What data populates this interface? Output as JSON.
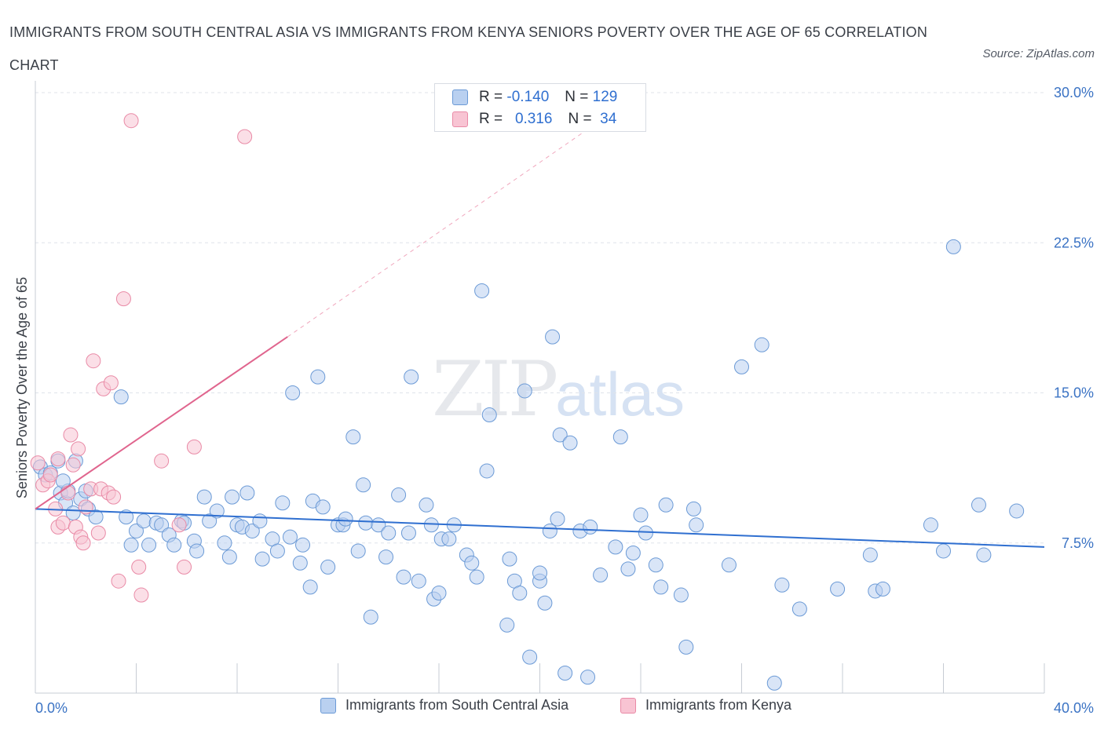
{
  "header": {
    "title": "IMMIGRANTS FROM SOUTH CENTRAL ASIA VS IMMIGRANTS FROM KENYA SENIORS POVERTY OVER THE AGE OF 65 CORRELATION CHART",
    "source": "Source: ZipAtlas.com"
  },
  "watermark": {
    "zip": "ZIP",
    "atlas": "atlas"
  },
  "stats": {
    "r_label": "R =",
    "n_label": "N =",
    "rows": [
      {
        "r": "-0.140",
        "n": "129"
      },
      {
        "r": "0.316",
        "n": "34"
      }
    ]
  },
  "colors": {
    "blue_fill": "#b9d0f0",
    "blue_stroke": "#6b9ad6",
    "blue_line": "#2f6fd0",
    "pink_fill": "#f8c4d3",
    "pink_stroke": "#e98aa6",
    "pink_line": "#e0658e",
    "grid": "#dfe3ea",
    "axis_label": "#3b73c4"
  },
  "chart_data": {
    "type": "scatter",
    "xlabel": "",
    "ylabel": "Seniors Poverty Over the Age of 65",
    "xlim": [
      0,
      40
    ],
    "ylim": [
      0,
      30
    ],
    "x_tick_labels": [
      "0.0%",
      "40.0%"
    ],
    "y_ticks": [
      7.5,
      15.0,
      22.5,
      30.0
    ],
    "y_tick_labels": [
      "7.5%",
      "15.0%",
      "22.5%",
      "30.0%"
    ],
    "grid": "horizontal-dashed",
    "legend_position": "bottom",
    "series": [
      {
        "name": "Immigrants from South Central Asia",
        "color": "blue",
        "trend": {
          "x": [
            0,
            40
          ],
          "y": [
            9.2,
            7.3
          ]
        },
        "points": [
          [
            0.2,
            11.3
          ],
          [
            0.4,
            10.9
          ],
          [
            0.6,
            11.0
          ],
          [
            0.9,
            11.6
          ],
          [
            1.0,
            10.0
          ],
          [
            1.2,
            9.5
          ],
          [
            1.3,
            10.1
          ],
          [
            1.5,
            9.0
          ],
          [
            1.6,
            11.6
          ],
          [
            1.8,
            9.7
          ],
          [
            2.0,
            10.1
          ],
          [
            2.1,
            9.2
          ],
          [
            2.4,
            8.8
          ],
          [
            3.4,
            14.8
          ],
          [
            3.6,
            8.8
          ],
          [
            3.8,
            7.4
          ],
          [
            4.0,
            8.1
          ],
          [
            4.3,
            8.6
          ],
          [
            4.5,
            7.4
          ],
          [
            4.8,
            8.5
          ],
          [
            5.0,
            8.4
          ],
          [
            5.3,
            7.9
          ],
          [
            5.5,
            7.4
          ],
          [
            5.8,
            8.6
          ],
          [
            5.9,
            8.5
          ],
          [
            6.3,
            7.6
          ],
          [
            6.4,
            7.1
          ],
          [
            6.7,
            9.8
          ],
          [
            6.9,
            8.6
          ],
          [
            7.2,
            9.1
          ],
          [
            7.5,
            7.5
          ],
          [
            7.7,
            6.8
          ],
          [
            8.0,
            8.4
          ],
          [
            8.2,
            8.3
          ],
          [
            8.4,
            10.0
          ],
          [
            8.6,
            8.1
          ],
          [
            8.9,
            8.6
          ],
          [
            9.0,
            6.7
          ],
          [
            9.4,
            7.7
          ],
          [
            9.6,
            7.1
          ],
          [
            9.8,
            9.5
          ],
          [
            10.1,
            7.8
          ],
          [
            10.2,
            15.0
          ],
          [
            10.5,
            6.5
          ],
          [
            10.6,
            7.4
          ],
          [
            10.9,
            5.3
          ],
          [
            11.0,
            9.6
          ],
          [
            11.2,
            15.8
          ],
          [
            11.4,
            9.3
          ],
          [
            11.6,
            6.3
          ],
          [
            12.0,
            8.4
          ],
          [
            12.2,
            8.4
          ],
          [
            12.3,
            8.7
          ],
          [
            12.6,
            12.8
          ],
          [
            12.8,
            7.1
          ],
          [
            13.0,
            10.4
          ],
          [
            13.1,
            8.5
          ],
          [
            13.3,
            3.8
          ],
          [
            13.6,
            8.4
          ],
          [
            13.9,
            6.8
          ],
          [
            14.0,
            8.0
          ],
          [
            14.4,
            9.9
          ],
          [
            14.6,
            5.8
          ],
          [
            14.8,
            8.0
          ],
          [
            14.9,
            15.8
          ],
          [
            15.2,
            5.6
          ],
          [
            15.7,
            8.4
          ],
          [
            15.8,
            4.7
          ],
          [
            16.0,
            5.0
          ],
          [
            16.1,
            7.7
          ],
          [
            16.4,
            7.7
          ],
          [
            16.6,
            8.4
          ],
          [
            17.1,
            6.9
          ],
          [
            17.3,
            6.5
          ],
          [
            17.5,
            5.8
          ],
          [
            17.7,
            20.1
          ],
          [
            17.9,
            11.1
          ],
          [
            18.0,
            13.9
          ],
          [
            18.7,
            3.4
          ],
          [
            18.8,
            6.7
          ],
          [
            19.0,
            5.6
          ],
          [
            19.2,
            5.0
          ],
          [
            19.4,
            15.1
          ],
          [
            19.6,
            1.8
          ],
          [
            20.0,
            5.6
          ],
          [
            20.0,
            6.0
          ],
          [
            20.2,
            4.5
          ],
          [
            20.4,
            8.1
          ],
          [
            20.5,
            17.8
          ],
          [
            20.7,
            8.7
          ],
          [
            20.8,
            12.9
          ],
          [
            21.0,
            1.0
          ],
          [
            21.2,
            12.5
          ],
          [
            21.6,
            8.1
          ],
          [
            21.9,
            0.8
          ],
          [
            22.0,
            8.3
          ],
          [
            22.4,
            5.9
          ],
          [
            23.0,
            7.3
          ],
          [
            23.2,
            12.8
          ],
          [
            23.5,
            6.2
          ],
          [
            23.7,
            7.0
          ],
          [
            24.0,
            8.9
          ],
          [
            24.2,
            8.0
          ],
          [
            24.6,
            6.4
          ],
          [
            24.8,
            5.3
          ],
          [
            25.0,
            9.4
          ],
          [
            25.6,
            4.9
          ],
          [
            25.8,
            2.3
          ],
          [
            26.1,
            9.2
          ],
          [
            26.2,
            8.4
          ],
          [
            27.5,
            6.4
          ],
          [
            28.0,
            16.3
          ],
          [
            28.8,
            17.4
          ],
          [
            29.3,
            0.5
          ],
          [
            29.6,
            5.4
          ],
          [
            30.3,
            4.2
          ],
          [
            31.8,
            5.2
          ],
          [
            33.1,
            6.9
          ],
          [
            33.3,
            5.1
          ],
          [
            33.6,
            5.2
          ],
          [
            35.5,
            8.4
          ],
          [
            36.0,
            7.1
          ],
          [
            36.4,
            22.3
          ],
          [
            37.4,
            9.4
          ],
          [
            37.6,
            6.9
          ],
          [
            38.9,
            9.1
          ],
          [
            1.1,
            10.6
          ],
          [
            7.8,
            9.8
          ],
          [
            15.5,
            9.4
          ]
        ]
      },
      {
        "name": "Immigrants from Kenya",
        "color": "pink",
        "trend": {
          "x": [
            0,
            10
          ],
          "y": [
            9.2,
            17.8
          ]
        },
        "trend_extension": {
          "x": [
            10,
            24
          ],
          "y": [
            17.8,
            30.0
          ]
        },
        "points": [
          [
            0.1,
            11.5
          ],
          [
            0.3,
            10.4
          ],
          [
            0.5,
            10.6
          ],
          [
            0.6,
            10.9
          ],
          [
            0.8,
            9.2
          ],
          [
            0.9,
            8.3
          ],
          [
            0.9,
            11.7
          ],
          [
            1.1,
            8.5
          ],
          [
            1.3,
            10.0
          ],
          [
            1.4,
            12.9
          ],
          [
            1.5,
            11.4
          ],
          [
            1.6,
            8.3
          ],
          [
            1.7,
            12.2
          ],
          [
            1.8,
            7.8
          ],
          [
            1.9,
            7.5
          ],
          [
            2.2,
            10.2
          ],
          [
            2.3,
            16.6
          ],
          [
            2.5,
            8.0
          ],
          [
            2.6,
            10.2
          ],
          [
            2.7,
            15.2
          ],
          [
            2.9,
            10.0
          ],
          [
            3.0,
            15.5
          ],
          [
            3.1,
            9.8
          ],
          [
            3.3,
            5.6
          ],
          [
            3.5,
            19.7
          ],
          [
            3.8,
            28.6
          ],
          [
            4.1,
            6.3
          ],
          [
            4.2,
            4.9
          ],
          [
            5.0,
            11.6
          ],
          [
            5.7,
            8.4
          ],
          [
            5.9,
            6.3
          ],
          [
            6.3,
            12.3
          ],
          [
            8.3,
            27.8
          ],
          [
            2.0,
            9.3
          ]
        ]
      }
    ]
  }
}
